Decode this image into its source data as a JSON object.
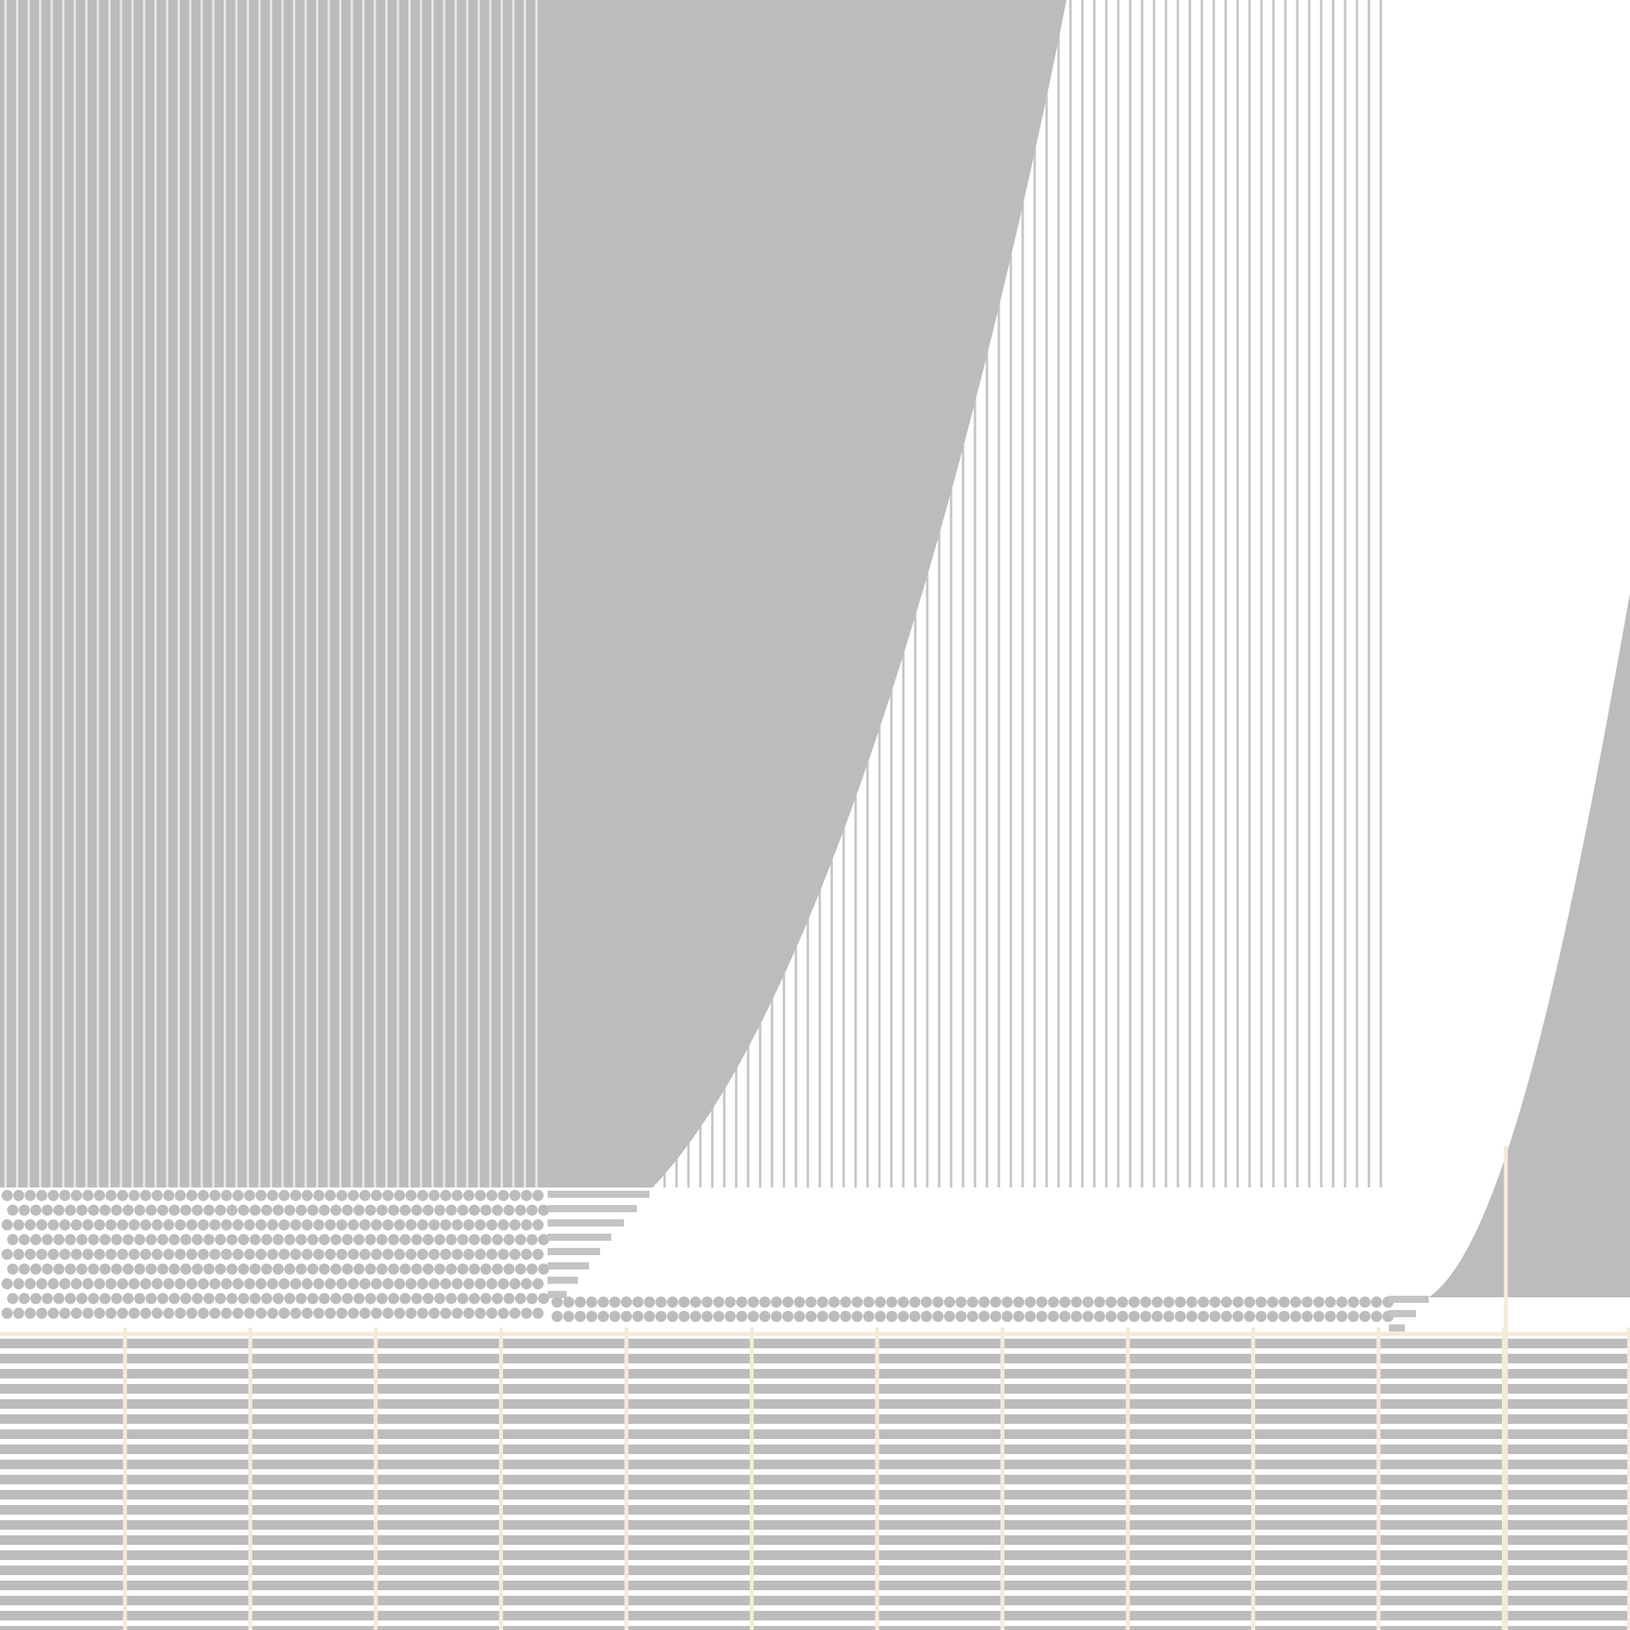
{
  "colors": {
    "background": "#ffffff",
    "fill_gray": "#bcbcbc",
    "stripe_gray": "#c4c4c4",
    "grid_cream": "#f3ead8"
  },
  "motifs": {
    "vertical_stripes": "vertical-line-pattern",
    "dots": "dot-grid-pattern",
    "horizontal_stripes": "horizontal-line-pattern",
    "grid": "cream-grid-lines"
  }
}
